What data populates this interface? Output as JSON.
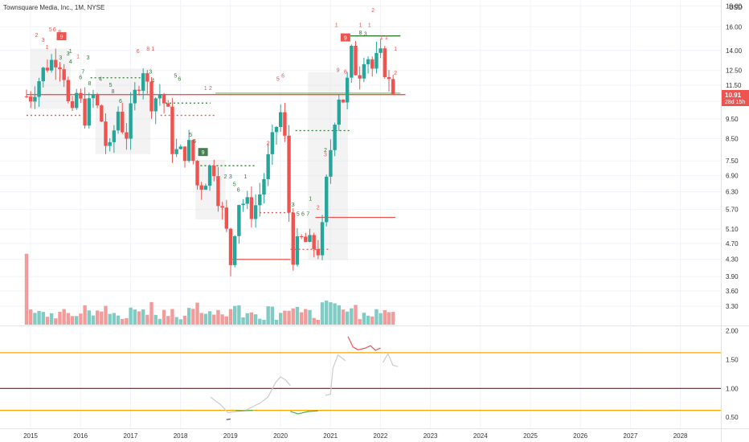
{
  "header": {
    "title": "Townsquare Media, Inc., 1M, NYSE",
    "currency": "USD"
  },
  "price_tag": {
    "price": "10.91",
    "countdown": "28d 15h"
  },
  "colors": {
    "up": "#26a69a",
    "down": "#ef5350",
    "vol_up": "#80cbc4",
    "vol_down": "#f29b9b",
    "level_high": "#f7a400",
    "level_mid": "#b71c1c",
    "level_low": "#f7a400",
    "label_box": "#ef5350",
    "label_box_green": "#4a7d52"
  },
  "chart_data": [
    {
      "type": "candlestick",
      "x_labels": [
        "2015",
        "2016",
        "2017",
        "2018",
        "2019",
        "2020",
        "2021",
        "2022",
        "2023",
        "2024",
        "2025",
        "2026",
        "2027",
        "2028"
      ],
      "x_range": [
        2014.92,
        2028.92
      ],
      "y_ticks": [
        3.3,
        3.6,
        3.9,
        4.3,
        4.7,
        5.1,
        5.7,
        6.3,
        6.9,
        7.5,
        8.5,
        9.5,
        10.5,
        11.5,
        12.5,
        14.0,
        16.0,
        18.0
      ],
      "y_tick_labels": [
        "3.30",
        "3.60",
        "3.90",
        "4.30",
        "4.70",
        "5.10",
        "5.70",
        "6.30",
        "6.90",
        "7.50",
        "8.50",
        "9.50",
        "10.50",
        "11.50",
        "12.50",
        "14.00",
        "16.00",
        "18.00"
      ],
      "y_scale": "log",
      "ylim": [
        3.0,
        18.2
      ],
      "last_price": 10.91,
      "close_anchors": [
        {
          "x": 2015.0,
          "y": 10.8
        },
        {
          "x": 2015.3,
          "y": 12.8
        },
        {
          "x": 2015.55,
          "y": 13.6
        },
        {
          "x": 2015.7,
          "y": 12.0
        },
        {
          "x": 2015.8,
          "y": 9.0
        },
        {
          "x": 2015.95,
          "y": 11.5
        },
        {
          "x": 2016.05,
          "y": 9.4
        },
        {
          "x": 2016.25,
          "y": 10.8
        },
        {
          "x": 2016.45,
          "y": 9.2
        },
        {
          "x": 2016.55,
          "y": 7.5
        },
        {
          "x": 2016.75,
          "y": 10.0
        },
        {
          "x": 2016.9,
          "y": 8.5
        },
        {
          "x": 2017.05,
          "y": 10.5
        },
        {
          "x": 2017.25,
          "y": 12.8
        },
        {
          "x": 2017.4,
          "y": 10.5
        },
        {
          "x": 2017.6,
          "y": 11.0
        },
        {
          "x": 2017.75,
          "y": 9.8
        },
        {
          "x": 2017.85,
          "y": 7.9
        },
        {
          "x": 2018.05,
          "y": 7.8
        },
        {
          "x": 2018.2,
          "y": 8.2
        },
        {
          "x": 2018.35,
          "y": 6.4
        },
        {
          "x": 2018.5,
          "y": 6.8
        },
        {
          "x": 2018.65,
          "y": 7.5
        },
        {
          "x": 2018.75,
          "y": 6.2
        },
        {
          "x": 2018.9,
          "y": 5.2
        },
        {
          "x": 2019.0,
          "y": 4.2
        },
        {
          "x": 2019.15,
          "y": 6.0
        },
        {
          "x": 2019.3,
          "y": 5.9
        },
        {
          "x": 2019.45,
          "y": 5.6
        },
        {
          "x": 2019.6,
          "y": 6.3
        },
        {
          "x": 2019.75,
          "y": 7.5
        },
        {
          "x": 2019.9,
          "y": 9.0
        },
        {
          "x": 2020.05,
          "y": 10.2
        },
        {
          "x": 2020.15,
          "y": 6.0
        },
        {
          "x": 2020.25,
          "y": 4.4
        },
        {
          "x": 2020.4,
          "y": 4.8
        },
        {
          "x": 2020.55,
          "y": 4.7
        },
        {
          "x": 2020.7,
          "y": 4.6
        },
        {
          "x": 2020.8,
          "y": 4.5
        },
        {
          "x": 2020.92,
          "y": 6.6
        },
        {
          "x": 2021.05,
          "y": 9.0
        },
        {
          "x": 2021.15,
          "y": 11.0
        },
        {
          "x": 2021.3,
          "y": 10.5
        },
        {
          "x": 2021.4,
          "y": 14.0
        },
        {
          "x": 2021.55,
          "y": 12.0
        },
        {
          "x": 2021.7,
          "y": 14.2
        },
        {
          "x": 2021.85,
          "y": 12.5
        },
        {
          "x": 2021.95,
          "y": 13.5
        },
        {
          "x": 2022.05,
          "y": 13.4
        },
        {
          "x": 2022.15,
          "y": 11.5
        },
        {
          "x": 2022.25,
          "y": 12.0
        },
        {
          "x": 2022.3,
          "y": 10.91
        }
      ],
      "volume_note": "monthly volume bars shown at bottom of price pane"
    },
    {
      "type": "line",
      "indicator_pane": true,
      "y_ticks": [
        0.5,
        1.0,
        1.5,
        2.0
      ],
      "y_tick_labels": [
        "0.50",
        "1.00",
        "1.50",
        "2.00"
      ],
      "ylim": [
        0.35,
        2.05
      ],
      "levels": [
        {
          "value": 1.62,
          "color": "level_high"
        },
        {
          "value": 1.0,
          "color": "level_mid"
        },
        {
          "value": 0.62,
          "color": "level_low"
        }
      ],
      "series": [
        {
          "color": "#cccccc",
          "points": [
            {
              "x": 2018.6,
              "y": 0.85
            },
            {
              "x": 2018.8,
              "y": 0.72
            },
            {
              "x": 2018.95,
              "y": 0.58
            },
            {
              "x": 2019.3,
              "y": 0.62
            },
            {
              "x": 2019.6,
              "y": 0.75
            },
            {
              "x": 2019.75,
              "y": 0.85
            },
            {
              "x": 2019.9,
              "y": 1.1
            },
            {
              "x": 2020.0,
              "y": 1.2
            },
            {
              "x": 2020.1,
              "y": 1.15
            },
            {
              "x": 2020.2,
              "y": 1.05
            }
          ]
        },
        {
          "color": "#cccccc",
          "points": [
            {
              "x": 2020.9,
              "y": 0.88
            },
            {
              "x": 2021.0,
              "y": 0.9
            },
            {
              "x": 2021.05,
              "y": 1.35
            },
            {
              "x": 2021.15,
              "y": 1.58
            },
            {
              "x": 2021.3,
              "y": 1.48
            }
          ]
        },
        {
          "color": "#cccccc",
          "points": [
            {
              "x": 2022.05,
              "y": 1.45
            },
            {
              "x": 2022.15,
              "y": 1.6
            },
            {
              "x": 2022.25,
              "y": 1.4
            },
            {
              "x": 2022.35,
              "y": 1.38
            }
          ]
        },
        {
          "color": "#ef5350",
          "points": [
            {
              "x": 2021.35,
              "y": 1.9
            },
            {
              "x": 2021.45,
              "y": 1.72
            },
            {
              "x": 2021.55,
              "y": 1.67
            },
            {
              "x": 2021.7,
              "y": 1.7
            },
            {
              "x": 2021.8,
              "y": 1.74
            },
            {
              "x": 2021.9,
              "y": 1.66
            },
            {
              "x": 2022.0,
              "y": 1.7
            }
          ]
        },
        {
          "color": "#4caf50",
          "points": [
            {
              "x": 2019.1,
              "y": 0.62
            },
            {
              "x": 2019.2,
              "y": 0.61
            },
            {
              "x": 2019.45,
              "y": 0.62
            }
          ]
        },
        {
          "color": "#4caf50",
          "points": [
            {
              "x": 2020.2,
              "y": 0.6
            },
            {
              "x": 2020.35,
              "y": 0.56
            },
            {
              "x": 2020.55,
              "y": 0.6
            },
            {
              "x": 2020.75,
              "y": 0.61
            }
          ]
        },
        {
          "color": "#555555",
          "points": [
            {
              "x": 2018.92,
              "y": 0.46
            },
            {
              "x": 2019.0,
              "y": 0.47
            }
          ]
        }
      ]
    }
  ],
  "annotations": {
    "red_counts": [
      {
        "text": "2",
        "x": 2015.12,
        "y": 15.1
      },
      {
        "text": "3",
        "x": 2015.25,
        "y": 14.7
      },
      {
        "text": "5",
        "x": 2015.4,
        "y": 15.6
      },
      {
        "text": "6",
        "x": 2015.48,
        "y": 15.6
      },
      {
        "text": "8",
        "x": 2015.58,
        "y": 15.4
      },
      {
        "text": "1",
        "x": 2015.33,
        "y": 14.1
      },
      {
        "text": "6",
        "x": 2017.15,
        "y": 13.8
      },
      {
        "text": "8",
        "x": 2017.35,
        "y": 14.0
      },
      {
        "text": "1",
        "x": 2017.45,
        "y": 14.0
      },
      {
        "text": "1",
        "x": 2015.95,
        "y": 13.4
      },
      {
        "text": "2",
        "x": 2018.6,
        "y": 11.2
      },
      {
        "text": "1",
        "x": 2018.5,
        "y": 11.2
      },
      {
        "text": "5",
        "x": 2019.95,
        "y": 11.8
      },
      {
        "text": "6",
        "x": 2020.05,
        "y": 12.0
      },
      {
        "text": "2",
        "x": 2019.75,
        "y": 8.2
      },
      {
        "text": "3",
        "x": 2020.9,
        "y": 7.7
      },
      {
        "text": "2",
        "x": 2020.75,
        "y": 5.7
      },
      {
        "text": "1",
        "x": 2021.12,
        "y": 16.0
      },
      {
        "text": "9",
        "x": 2021.15,
        "y": 12.4
      },
      {
        "text": "6",
        "x": 2021.3,
        "y": 12.3
      },
      {
        "text": "1",
        "x": 2021.6,
        "y": 16.0
      },
      {
        "text": "1",
        "x": 2021.78,
        "y": 16.0
      },
      {
        "text": "2",
        "x": 2021.85,
        "y": 17.4
      },
      {
        "text": "1",
        "x": 2022.02,
        "y": 14.9
      },
      {
        "text": "1",
        "x": 2022.12,
        "y": 14.9
      },
      {
        "text": "2",
        "x": 2022.3,
        "y": 12.2
      },
      {
        "text": "1",
        "x": 2022.3,
        "y": 14.0
      }
    ],
    "green_counts": [
      {
        "text": "1",
        "x": 2015.8,
        "y": 13.8
      },
      {
        "text": "3",
        "x": 2016.15,
        "y": 13.3
      },
      {
        "text": "3",
        "x": 2015.75,
        "y": 13.6
      },
      {
        "text": "4",
        "x": 2015.8,
        "y": 13.0
      },
      {
        "text": "6",
        "x": 2016.0,
        "y": 11.9
      },
      {
        "text": "7",
        "x": 2016.05,
        "y": 12.3
      },
      {
        "text": "8",
        "x": 2016.18,
        "y": 11.5
      },
      {
        "text": "3",
        "x": 2015.6,
        "y": 13.3
      },
      {
        "text": "8",
        "x": 2016.65,
        "y": 11.0
      },
      {
        "text": "6",
        "x": 2016.8,
        "y": 10.4
      },
      {
        "text": "4",
        "x": 2016.4,
        "y": 11.8
      },
      {
        "text": "5",
        "x": 2016.6,
        "y": 11.4
      },
      {
        "text": "5",
        "x": 2017.9,
        "y": 12.0
      },
      {
        "text": "6",
        "x": 2017.98,
        "y": 11.8
      },
      {
        "text": "3",
        "x": 2017.4,
        "y": 12.3
      },
      {
        "text": "4",
        "x": 2017.45,
        "y": 11.7
      },
      {
        "text": "5",
        "x": 2018.2,
        "y": 8.6
      },
      {
        "text": "6",
        "x": 2018.28,
        "y": 8.3
      },
      {
        "text": "2",
        "x": 2018.9,
        "y": 6.8
      },
      {
        "text": "3",
        "x": 2019.0,
        "y": 6.8
      },
      {
        "text": "5",
        "x": 2019.08,
        "y": 6.5
      },
      {
        "text": "6",
        "x": 2019.16,
        "y": 6.3
      },
      {
        "text": "1",
        "x": 2019.3,
        "y": 6.8
      },
      {
        "text": "3",
        "x": 2020.25,
        "y": 5.8
      },
      {
        "text": "5",
        "x": 2020.35,
        "y": 5.5
      },
      {
        "text": "6",
        "x": 2020.45,
        "y": 5.5
      },
      {
        "text": "7",
        "x": 2020.55,
        "y": 5.5
      },
      {
        "text": "1",
        "x": 2020.6,
        "y": 6.0
      },
      {
        "text": "2",
        "x": 2020.9,
        "y": 7.9
      },
      {
        "text": "3",
        "x": 2021.7,
        "y": 15.2
      },
      {
        "text": "8",
        "x": 2021.6,
        "y": 15.3
      }
    ],
    "boxed": [
      {
        "text": "9",
        "x": 2015.62,
        "y": 15.1,
        "color": "label_box"
      },
      {
        "text": "9",
        "x": 2021.3,
        "y": 15.0,
        "color": "label_box"
      },
      {
        "text": "9",
        "x": 2018.45,
        "y": 7.85,
        "color": "label_box_green"
      }
    ]
  }
}
